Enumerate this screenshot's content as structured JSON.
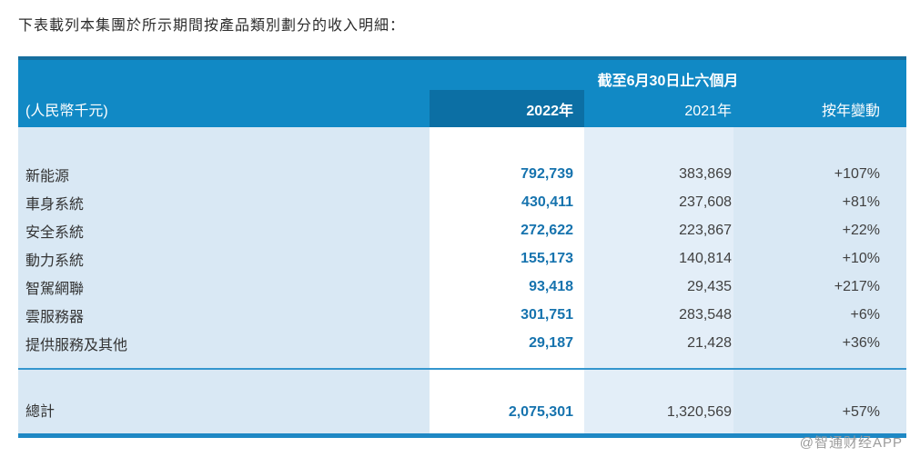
{
  "title": "下表載列本集團於所示期間按產品類別劃分的收入明細：",
  "table": {
    "period_header": "截至6月30日止六個月",
    "unit_label": "(人民幣千元)",
    "columns": [
      "2022年",
      "2021年",
      "按年變動"
    ],
    "rows": [
      {
        "label": "新能源",
        "y2022": "792,739",
        "y2021": "383,869",
        "change": "+107%"
      },
      {
        "label": "車身系統",
        "y2022": "430,411",
        "y2021": "237,608",
        "change": "+81%"
      },
      {
        "label": "安全系統",
        "y2022": "272,622",
        "y2021": "223,867",
        "change": "+22%"
      },
      {
        "label": "動力系統",
        "y2022": "155,173",
        "y2021": "140,814",
        "change": "+10%"
      },
      {
        "label": "智駕網聯",
        "y2022": "93,418",
        "y2021": "29,435",
        "change": "+217%"
      },
      {
        "label": "雲服務器",
        "y2022": "301,751",
        "y2021": "283,548",
        "change": "+6%"
      },
      {
        "label": "提供服務及其他",
        "y2022": "29,187",
        "y2021": "21,428",
        "change": "+36%"
      }
    ],
    "total": {
      "label": "總計",
      "y2022": "2,075,301",
      "y2021": "1,320,569",
      "change": "+57%"
    }
  },
  "watermark": "@智通财经APP",
  "colors": {
    "header_bar": "#1189c5",
    "header_top_border": "#156f9f",
    "header_2022_highlight": "#0c6fa4",
    "body_background": "#d9e8f4",
    "column_2022_band": "#ffffff",
    "column_2021_band": "#e3eef8",
    "value_2022_text": "#1673ae",
    "value_text": "#404040",
    "thin_separator": "#3496ce",
    "thick_bottom_line": "#1e88c4",
    "watermark_text": "#9b9b9b"
  }
}
